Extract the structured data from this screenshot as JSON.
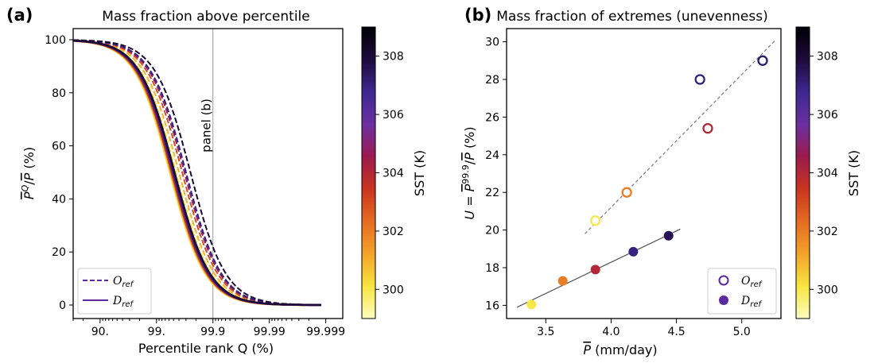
{
  "panels": {
    "a": {
      "letter": "(a)",
      "title": "Mass fraction above percentile"
    },
    "b": {
      "letter": "(b)",
      "title": "Mass fraction of extremes (unevenness)"
    }
  },
  "colorbar": {
    "label": "SST (K)",
    "range": [
      299,
      309
    ],
    "ticks": [
      "300",
      "302",
      "304",
      "306",
      "308"
    ],
    "tick_values": [
      300,
      302,
      304,
      306,
      308
    ],
    "colormap": [
      "#fcfdbf",
      "#f8e53f",
      "#f4a32a",
      "#e56b22",
      "#c8341f",
      "#9b1b4e",
      "#6a2fa0",
      "#3d2790",
      "#1e0a3c",
      "#000004"
    ]
  },
  "chart_data": [
    {
      "type": "line",
      "title": "Mass fraction above percentile",
      "xlabel": "Percentile rank Q (%)",
      "ylabel_tex": {
        "main": "P",
        "sup": "Q",
        "after": "/",
        "main2": "P",
        "unit": " (%)"
      },
      "xscale": "log-of-(100-Q)",
      "x_ticks": [
        "90.",
        "99.",
        "99.9",
        "99.99",
        "99.999"
      ],
      "ylim": [
        0,
        100
      ],
      "y_ticks": [
        "0",
        "20",
        "40",
        "60",
        "80",
        "100"
      ],
      "vline": {
        "x": "99.9",
        "label": "panel (b)"
      },
      "sst_values": [
        300,
        301,
        303,
        305,
        307,
        308
      ],
      "series": [
        {
          "group": "O",
          "sst": 300,
          "style": "dashed",
          "x50": "99.55"
        },
        {
          "group": "O",
          "sst": 301,
          "style": "dashed",
          "x50": "99.6"
        },
        {
          "group": "O",
          "sst": 303,
          "style": "dashed",
          "x50": "99.65"
        },
        {
          "group": "O",
          "sst": 305,
          "style": "dashed",
          "x50": "99.68"
        },
        {
          "group": "O",
          "sst": 307,
          "style": "dashed",
          "x50": "99.7"
        },
        {
          "group": "O",
          "sst": 308,
          "style": "dashed",
          "x50": "99.75"
        },
        {
          "group": "D",
          "sst": 300,
          "style": "solid",
          "x50": "99.42"
        },
        {
          "group": "D",
          "sst": 301,
          "style": "solid",
          "x50": "99.44"
        },
        {
          "group": "D",
          "sst": 303,
          "style": "solid",
          "x50": "99.46"
        },
        {
          "group": "D",
          "sst": 305,
          "style": "solid",
          "x50": "99.48"
        },
        {
          "group": "D",
          "sst": 307,
          "style": "solid",
          "x50": "99.5"
        },
        {
          "group": "D",
          "sst": 308,
          "style": "solid",
          "x50": "99.52"
        }
      ],
      "legend": {
        "position": "lower left",
        "entries": [
          {
            "style": "dashed",
            "label": "O",
            "sub": "ref"
          },
          {
            "style": "solid",
            "label": "D",
            "sub": "ref"
          }
        ]
      }
    },
    {
      "type": "scatter",
      "title": "Mass fraction of extremes (unevenness)",
      "xlabel": {
        "main": "P",
        "unit": " (mm/day)"
      },
      "ylabel_tex": {
        "u": "U",
        "eq": " = ",
        "main": "P",
        "sup": "99.9",
        "after": "/",
        "main2": "P",
        "unit": " (%)"
      },
      "xlim": [
        3.2,
        5.3
      ],
      "ylim": [
        15.3,
        30.7
      ],
      "x_ticks": [
        3.5,
        4.0,
        4.5,
        5.0
      ],
      "x_tick_labels": [
        "3.5",
        "4.0",
        "4.5",
        "5.0"
      ],
      "y_ticks": [
        16,
        18,
        20,
        22,
        24,
        26,
        28,
        30
      ],
      "y_tick_labels": [
        "16",
        "18",
        "20",
        "22",
        "24",
        "26",
        "28",
        "30"
      ],
      "series": [
        {
          "group": "O",
          "marker": "open-circle",
          "points": [
            {
              "x": 3.88,
              "y": 20.5,
              "sst": 300
            },
            {
              "x": 4.12,
              "y": 22.0,
              "sst": 302
            },
            {
              "x": 4.74,
              "y": 25.4,
              "sst": 304
            },
            {
              "x": 4.68,
              "y": 28.0,
              "sst": 307
            },
            {
              "x": 5.16,
              "y": 29.0,
              "sst": 307.3
            }
          ]
        },
        {
          "group": "D",
          "marker": "filled-circle",
          "points": [
            {
              "x": 3.39,
              "y": 16.05,
              "sst": 300
            },
            {
              "x": 3.63,
              "y": 17.3,
              "sst": 302
            },
            {
              "x": 3.88,
              "y": 17.9,
              "sst": 304
            },
            {
              "x": 4.17,
              "y": 18.85,
              "sst": 307
            },
            {
              "x": 4.44,
              "y": 19.7,
              "sst": 307.6
            }
          ]
        }
      ],
      "fit_lines": [
        {
          "group": "O",
          "style": "dashed",
          "color": "#777777",
          "from": [
            3.8,
            19.8
          ],
          "to": [
            5.26,
            30.1
          ]
        },
        {
          "group": "D",
          "style": "solid",
          "color": "#555555",
          "from": [
            3.28,
            15.9
          ],
          "to": [
            4.53,
            20.05
          ]
        }
      ],
      "legend": {
        "position": "lower right",
        "entries": [
          {
            "marker": "open-circle",
            "label": "O",
            "sub": "ref"
          },
          {
            "marker": "filled-circle",
            "label": "D",
            "sub": "ref"
          }
        ]
      }
    }
  ]
}
